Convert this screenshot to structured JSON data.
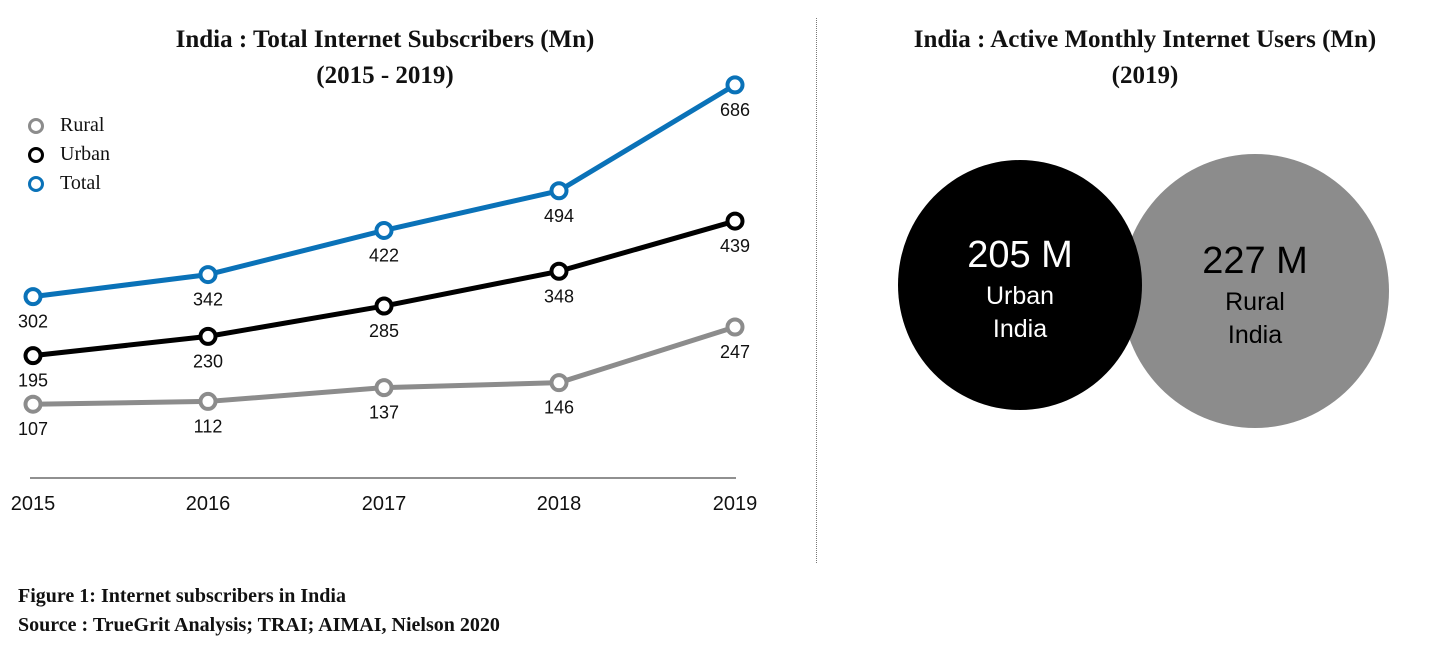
{
  "chart_data": [
    {
      "type": "line",
      "title": "India : Total Internet Subscribers (Mn)",
      "subtitle": "(2015 - 2019)",
      "x": [
        "2015",
        "2016",
        "2017",
        "2018",
        "2019"
      ],
      "series": [
        {
          "name": "Rural",
          "values": [
            107,
            112,
            137,
            146,
            247
          ],
          "color": "#8c8c8c"
        },
        {
          "name": "Urban",
          "values": [
            195,
            230,
            285,
            348,
            439
          ],
          "color": "#000000"
        },
        {
          "name": "Total",
          "values": [
            302,
            342,
            422,
            494,
            686
          ],
          "color": "#0a72b8"
        }
      ],
      "legend_position": "top-left",
      "grid": false
    },
    {
      "type": "bubble",
      "title": "India : Active Monthly Internet Users (Mn)",
      "subtitle": "(2019)",
      "items": [
        {
          "value_label": "205 M",
          "line1": "Urban",
          "line2": "India",
          "value": 205,
          "color": "#000000",
          "text_color": "#ffffff"
        },
        {
          "value_label": "227 M",
          "line1": "Rural",
          "line2": "India",
          "value": 227,
          "color": "#8c8c8c",
          "text_color": "#000000"
        }
      ]
    }
  ],
  "caption": {
    "figure": "Figure 1: Internet subscribers in India",
    "source": "Source : TrueGrit Analysis; TRAI; AIMAI, Nielson 2020"
  }
}
